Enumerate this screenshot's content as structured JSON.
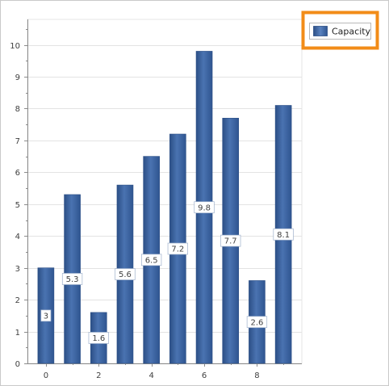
{
  "chart_data": {
    "type": "bar",
    "x": [
      0,
      1,
      2,
      3,
      4,
      5,
      6,
      7,
      8,
      9
    ],
    "x_tick_labels": [
      "0",
      "2",
      "4",
      "6",
      "8"
    ],
    "series": [
      {
        "name": "Capacity",
        "values": [
          3,
          5.3,
          1.6,
          5.6,
          6.5,
          7.2,
          9.8,
          7.7,
          2.6,
          8.1
        ]
      }
    ],
    "data_labels": [
      "3",
      "5.3",
      "1.6",
      "5.6",
      "6.5",
      "7.2",
      "9.8",
      "7.7",
      "2.6",
      "8.1"
    ],
    "ylim": [
      0,
      10.8
    ],
    "y_ticks": [
      0,
      1,
      2,
      3,
      4,
      5,
      6,
      7,
      8,
      9,
      10
    ],
    "y_tick_labels": [
      "0",
      "1",
      "2",
      "3",
      "4",
      "5",
      "6",
      "7",
      "8",
      "9",
      "10"
    ],
    "grid": true,
    "legend": {
      "placement": "top-right",
      "highlighted": true
    },
    "colors": {
      "bar_dark": "#2c4f86",
      "bar_light": "#4f78b6",
      "grid": "#e3e3e3",
      "axis": "#8c8c8c",
      "legend_highlight": "#f28c18"
    }
  }
}
